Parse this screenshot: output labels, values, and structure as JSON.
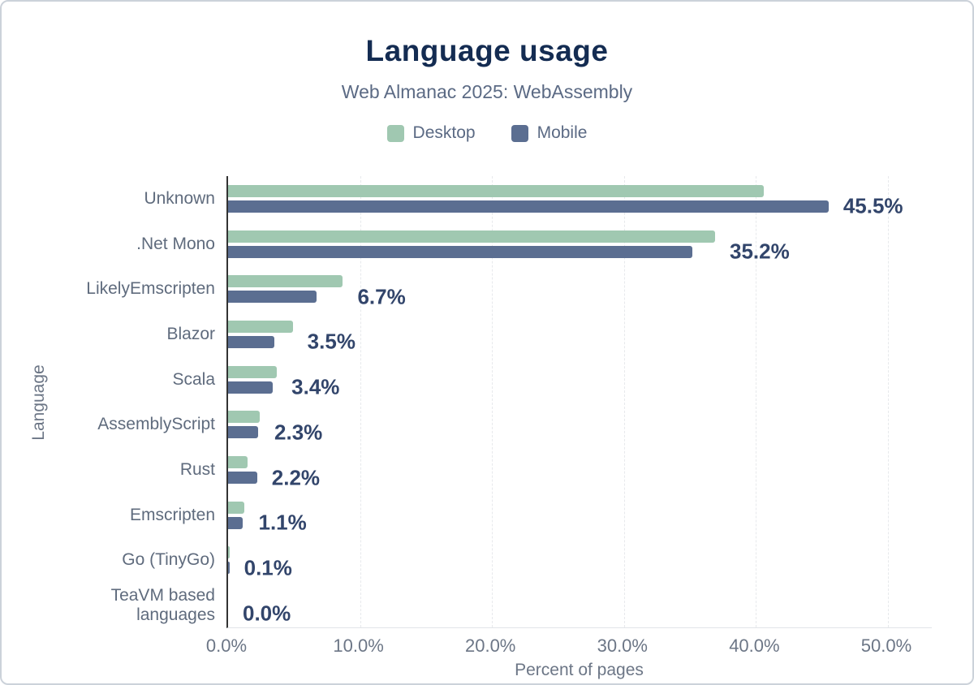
{
  "title": "Language usage",
  "subtitle": "Web Almanac 2025: WebAssembly",
  "legend": [
    {
      "label": "Desktop",
      "color": "#a0c8b1"
    },
    {
      "label": "Mobile",
      "color": "#5b6e91"
    }
  ],
  "colors": {
    "title": "#142c52",
    "subtitle": "#5b6a84",
    "value_label": "#32456b",
    "axis_text": "#6c7686",
    "category_text": "#5f6b7d",
    "gridline": "#e7e9ec",
    "axis_line": "#333333"
  },
  "chart_data": {
    "type": "bar",
    "orientation": "horizontal",
    "title": "Language usage",
    "subtitle": "Web Almanac 2025: WebAssembly",
    "xlabel": "Percent of pages",
    "ylabel": "Language",
    "xlim": [
      0,
      53.4
    ],
    "x_ticks": [
      "0.0%",
      "10.0%",
      "20.0%",
      "30.0%",
      "40.0%",
      "50.0%"
    ],
    "grid": "vertical-dashed",
    "legend_position": "top",
    "categories": [
      "Unknown",
      ".Net Mono",
      "LikelyEmscripten",
      "Blazor",
      "Scala",
      "AssemblyScript",
      "Rust",
      "Emscripten",
      "Go (TinyGo)",
      "TeaVM based languages"
    ],
    "series": [
      {
        "name": "Desktop",
        "values": [
          40.6,
          36.9,
          8.7,
          4.9,
          3.7,
          2.4,
          1.5,
          1.2,
          0.1,
          0.0
        ]
      },
      {
        "name": "Mobile",
        "values": [
          45.5,
          35.2,
          6.7,
          3.5,
          3.4,
          2.3,
          2.2,
          1.1,
          0.1,
          0.0
        ]
      }
    ],
    "value_labels": [
      "45.5%",
      "35.2%",
      "6.7%",
      "3.5%",
      "3.4%",
      "2.3%",
      "2.2%",
      "1.1%",
      "0.1%",
      "0.0%"
    ]
  }
}
